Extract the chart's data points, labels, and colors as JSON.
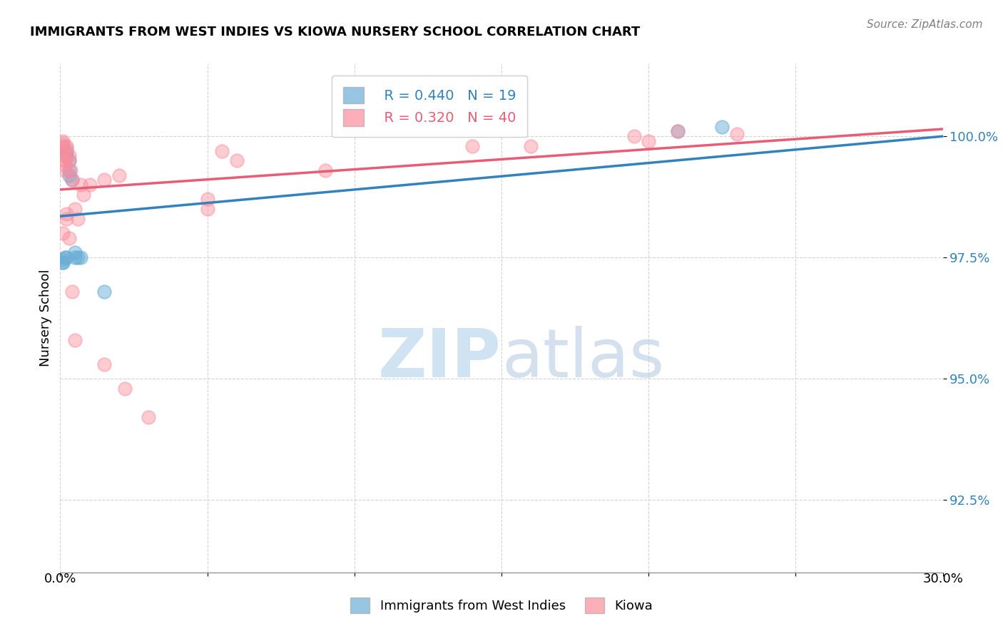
{
  "title": "IMMIGRANTS FROM WEST INDIES VS KIOWA NURSERY SCHOOL CORRELATION CHART",
  "source": "Source: ZipAtlas.com",
  "ylabel": "Nursery School",
  "ytick_labels": [
    "92.5%",
    "95.0%",
    "97.5%",
    "100.0%"
  ],
  "ytick_values": [
    92.5,
    95.0,
    97.5,
    100.0
  ],
  "xlim": [
    0.0,
    30.0
  ],
  "ylim": [
    91.0,
    101.5
  ],
  "legend_blue_r": "R = 0.440",
  "legend_blue_n": "N = 19",
  "legend_pink_r": "R = 0.320",
  "legend_pink_n": "N = 40",
  "blue_color": "#6baed6",
  "pink_color": "#fc8d9c",
  "blue_line_color": "#3182bd",
  "pink_line_color": "#e85d75",
  "watermark_zip": "ZIP",
  "watermark_atlas": "atlas",
  "blue_scatter_x": [
    0.1,
    0.2,
    0.2,
    0.3,
    0.3,
    0.3,
    0.4,
    0.5,
    0.5,
    0.6,
    0.7,
    1.5,
    0.1,
    0.1,
    0.1,
    0.15,
    0.2,
    21.0,
    22.5
  ],
  "blue_scatter_y": [
    99.8,
    99.6,
    99.7,
    99.5,
    99.3,
    99.2,
    99.1,
    97.6,
    97.5,
    97.5,
    97.5,
    96.8,
    97.4,
    97.4,
    97.45,
    97.5,
    97.5,
    100.1,
    100.2
  ],
  "pink_scatter_x": [
    0.1,
    0.1,
    0.1,
    0.1,
    0.15,
    0.15,
    0.15,
    0.2,
    0.2,
    0.3,
    0.3,
    0.35,
    0.4,
    0.5,
    0.6,
    0.7,
    0.8,
    1.0,
    1.5,
    2.0,
    5.0,
    5.0,
    6.0,
    9.0,
    14.0,
    19.5,
    20.0,
    23.0,
    0.1,
    0.2,
    0.2,
    0.3,
    0.4,
    0.5,
    1.5,
    2.2,
    3.0,
    5.5,
    16.0,
    21.0
  ],
  "pink_scatter_y": [
    99.9,
    99.85,
    99.7,
    99.6,
    99.5,
    99.4,
    99.3,
    99.8,
    99.75,
    99.6,
    99.5,
    99.3,
    99.1,
    98.5,
    98.3,
    99.0,
    98.8,
    99.0,
    99.1,
    99.2,
    98.7,
    98.5,
    99.5,
    99.3,
    99.8,
    100.0,
    99.9,
    100.05,
    98.0,
    98.4,
    98.3,
    97.9,
    96.8,
    95.8,
    95.3,
    94.8,
    94.2,
    99.7,
    99.8,
    100.1
  ],
  "blue_trend_x": [
    0.0,
    30.0
  ],
  "blue_trend_y": [
    98.35,
    100.0
  ],
  "pink_trend_x": [
    0.0,
    30.0
  ],
  "pink_trend_y": [
    98.9,
    100.15
  ]
}
